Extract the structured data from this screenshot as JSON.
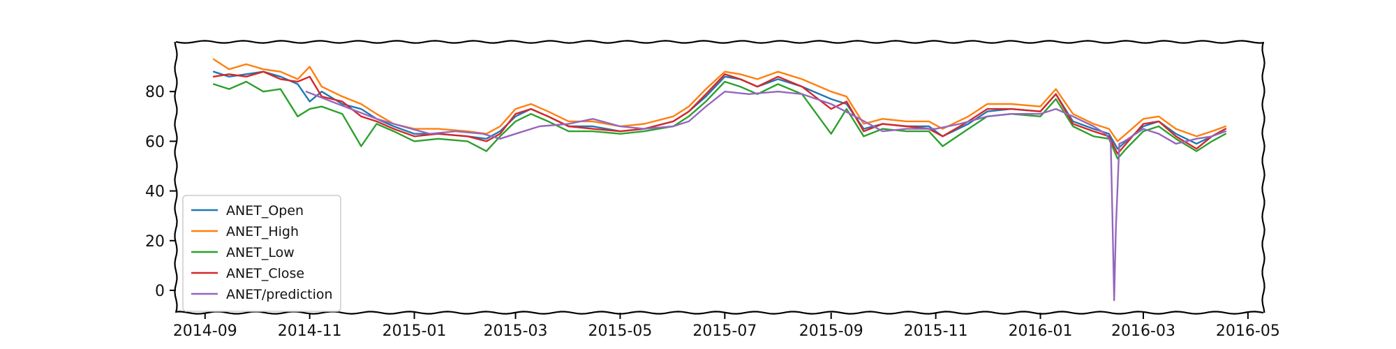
{
  "chart_data": {
    "type": "line",
    "title": "",
    "xlabel": "",
    "ylabel": "",
    "x_range": [
      "2014-08-15",
      "2016-05-10"
    ],
    "ylim": [
      -9,
      100
    ],
    "x_ticks": [
      "2014-09-01",
      "2014-11-01",
      "2015-01-01",
      "2015-03-01",
      "2015-05-01",
      "2015-07-01",
      "2015-09-01",
      "2015-11-01",
      "2016-01-01",
      "2016-03-01",
      "2016-05-01"
    ],
    "x_tick_labels": [
      "2014-09",
      "2014-11",
      "2015-01",
      "2015-03",
      "2015-05",
      "2015-07",
      "2015-09",
      "2015-11",
      "2016-01",
      "2016-03",
      "2016-05"
    ],
    "y_ticks": [
      0,
      20,
      40,
      60,
      80
    ],
    "y_tick_labels": [
      "0",
      "20",
      "40",
      "60",
      "80"
    ],
    "grid": false,
    "legend_position": "lower-left",
    "style": "xkcd",
    "series": [
      {
        "name": "ANET_Open",
        "color": "#1f77b4",
        "x": [
          "2014-09-06",
          "2014-09-15",
          "2014-09-25",
          "2014-10-05",
          "2014-10-15",
          "2014-10-25",
          "2014-11-01",
          "2014-11-08",
          "2014-11-20",
          "2014-12-01",
          "2014-12-10",
          "2014-12-20",
          "2015-01-01",
          "2015-01-15",
          "2015-02-01",
          "2015-02-12",
          "2015-02-20",
          "2015-03-01",
          "2015-03-10",
          "2015-03-20",
          "2015-04-01",
          "2015-04-15",
          "2015-05-01",
          "2015-05-15",
          "2015-06-01",
          "2015-06-10",
          "2015-06-20",
          "2015-07-01",
          "2015-07-10",
          "2015-07-20",
          "2015-08-01",
          "2015-08-15",
          "2015-09-01",
          "2015-09-10",
          "2015-09-20",
          "2015-10-01",
          "2015-10-15",
          "2015-10-28",
          "2015-11-05",
          "2015-11-20",
          "2015-12-01",
          "2015-12-15",
          "2016-01-01",
          "2016-01-10",
          "2016-01-20",
          "2016-02-01",
          "2016-02-10",
          "2016-02-15",
          "2016-02-20",
          "2016-03-01",
          "2016-03-10",
          "2016-03-20",
          "2016-04-01",
          "2016-04-10",
          "2016-04-18"
        ],
        "values": [
          88,
          86,
          87,
          88,
          86,
          83,
          76,
          80,
          75,
          73,
          69,
          66,
          63,
          63,
          62,
          61,
          64,
          70,
          73,
          70,
          66,
          66,
          64,
          65,
          68,
          72,
          78,
          86,
          85,
          82,
          85,
          82,
          77,
          75,
          65,
          67,
          66,
          66,
          62,
          67,
          72,
          73,
          72,
          79,
          68,
          65,
          63,
          57,
          60,
          66,
          68,
          63,
          59,
          62,
          65
        ]
      },
      {
        "name": "ANET_High",
        "color": "#ff7f0e",
        "x": [
          "2014-09-06",
          "2014-09-15",
          "2014-09-25",
          "2014-10-05",
          "2014-10-15",
          "2014-10-25",
          "2014-11-01",
          "2014-11-08",
          "2014-11-20",
          "2014-12-01",
          "2014-12-10",
          "2014-12-20",
          "2015-01-01",
          "2015-01-15",
          "2015-02-01",
          "2015-02-12",
          "2015-02-20",
          "2015-03-01",
          "2015-03-10",
          "2015-03-20",
          "2015-04-01",
          "2015-04-15",
          "2015-05-01",
          "2015-05-15",
          "2015-06-01",
          "2015-06-10",
          "2015-06-20",
          "2015-07-01",
          "2015-07-10",
          "2015-07-20",
          "2015-08-01",
          "2015-08-15",
          "2015-09-01",
          "2015-09-10",
          "2015-09-20",
          "2015-10-01",
          "2015-10-15",
          "2015-10-28",
          "2015-11-05",
          "2015-11-20",
          "2015-12-01",
          "2015-12-15",
          "2016-01-01",
          "2016-01-10",
          "2016-01-20",
          "2016-02-01",
          "2016-02-10",
          "2016-02-15",
          "2016-02-20",
          "2016-03-01",
          "2016-03-10",
          "2016-03-20",
          "2016-04-01",
          "2016-04-10",
          "2016-04-18"
        ],
        "values": [
          93,
          89,
          91,
          89,
          88,
          85,
          90,
          82,
          78,
          75,
          71,
          67,
          65,
          65,
          64,
          63,
          66,
          73,
          75,
          72,
          68,
          68,
          66,
          67,
          70,
          74,
          81,
          88,
          87,
          85,
          88,
          85,
          80,
          78,
          67,
          69,
          68,
          68,
          65,
          70,
          75,
          75,
          74,
          81,
          71,
          67,
          65,
          60,
          63,
          69,
          70,
          65,
          62,
          64,
          66
        ]
      },
      {
        "name": "ANET_Low",
        "color": "#2ca02c",
        "x": [
          "2014-09-06",
          "2014-09-15",
          "2014-09-25",
          "2014-10-05",
          "2014-10-15",
          "2014-10-25",
          "2014-11-01",
          "2014-11-08",
          "2014-11-20",
          "2014-12-01",
          "2014-12-10",
          "2014-12-20",
          "2015-01-01",
          "2015-01-15",
          "2015-02-01",
          "2015-02-12",
          "2015-02-20",
          "2015-03-01",
          "2015-03-10",
          "2015-03-20",
          "2015-04-01",
          "2015-04-15",
          "2015-05-01",
          "2015-05-15",
          "2015-06-01",
          "2015-06-10",
          "2015-06-20",
          "2015-07-01",
          "2015-07-10",
          "2015-07-20",
          "2015-08-01",
          "2015-08-15",
          "2015-09-01",
          "2015-09-10",
          "2015-09-20",
          "2015-10-01",
          "2015-10-15",
          "2015-10-28",
          "2015-11-05",
          "2015-11-20",
          "2015-12-01",
          "2015-12-15",
          "2016-01-01",
          "2016-01-10",
          "2016-01-20",
          "2016-02-01",
          "2016-02-10",
          "2016-02-15",
          "2016-02-20",
          "2016-03-01",
          "2016-03-10",
          "2016-03-20",
          "2016-04-01",
          "2016-04-10",
          "2016-04-18"
        ],
        "values": [
          83,
          81,
          84,
          80,
          81,
          70,
          73,
          74,
          71,
          58,
          67,
          64,
          60,
          61,
          60,
          56,
          62,
          68,
          71,
          68,
          64,
          64,
          63,
          64,
          66,
          70,
          76,
          84,
          82,
          79,
          83,
          79,
          63,
          73,
          62,
          65,
          64,
          64,
          58,
          65,
          70,
          71,
          70,
          77,
          66,
          62,
          61,
          53,
          57,
          64,
          66,
          61,
          56,
          60,
          63
        ]
      },
      {
        "name": "ANET_Close",
        "color": "#d62728",
        "x": [
          "2014-09-06",
          "2014-09-15",
          "2014-09-25",
          "2014-10-05",
          "2014-10-15",
          "2014-10-25",
          "2014-11-01",
          "2014-11-08",
          "2014-11-20",
          "2014-12-01",
          "2014-12-10",
          "2014-12-20",
          "2015-01-01",
          "2015-01-15",
          "2015-02-01",
          "2015-02-12",
          "2015-02-20",
          "2015-03-01",
          "2015-03-10",
          "2015-03-20",
          "2015-04-01",
          "2015-04-15",
          "2015-05-01",
          "2015-05-15",
          "2015-06-01",
          "2015-06-10",
          "2015-06-20",
          "2015-07-01",
          "2015-07-10",
          "2015-07-20",
          "2015-08-01",
          "2015-08-15",
          "2015-09-01",
          "2015-09-10",
          "2015-09-20",
          "2015-10-01",
          "2015-10-15",
          "2015-10-28",
          "2015-11-05",
          "2015-11-20",
          "2015-12-01",
          "2015-12-15",
          "2016-01-01",
          "2016-01-10",
          "2016-01-20",
          "2016-02-01",
          "2016-02-10",
          "2016-02-15",
          "2016-02-20",
          "2016-03-01",
          "2016-03-10",
          "2016-03-20",
          "2016-04-01",
          "2016-04-10",
          "2016-04-18"
        ],
        "values": [
          86,
          87,
          86,
          88,
          85,
          84,
          86,
          78,
          76,
          70,
          68,
          65,
          62,
          63,
          62,
          60,
          63,
          71,
          73,
          70,
          66,
          65,
          64,
          65,
          68,
          72,
          79,
          87,
          85,
          82,
          86,
          82,
          73,
          76,
          64,
          67,
          66,
          65,
          62,
          68,
          73,
          73,
          72,
          79,
          67,
          64,
          62,
          55,
          59,
          67,
          68,
          62,
          57,
          62,
          65
        ]
      },
      {
        "name": "ANET/prediction",
        "color": "#9467bd",
        "x": [
          "2014-10-30",
          "2014-11-10",
          "2014-11-25",
          "2014-12-10",
          "2014-12-25",
          "2015-01-10",
          "2015-01-25",
          "2015-02-10",
          "2015-02-20",
          "2015-03-01",
          "2015-03-15",
          "2015-04-01",
          "2015-04-15",
          "2015-05-01",
          "2015-05-15",
          "2015-06-01",
          "2015-06-10",
          "2015-06-20",
          "2015-07-01",
          "2015-07-15",
          "2015-08-01",
          "2015-08-15",
          "2015-09-01",
          "2015-09-15",
          "2015-10-01",
          "2015-10-15",
          "2015-11-01",
          "2015-11-15",
          "2015-12-01",
          "2015-12-15",
          "2016-01-01",
          "2016-01-10",
          "2016-01-20",
          "2016-02-01",
          "2016-02-08",
          "2016-02-11",
          "2016-02-12",
          "2016-02-13",
          "2016-02-14",
          "2016-02-16",
          "2016-02-19",
          "2016-03-01",
          "2016-03-10",
          "2016-03-20",
          "2016-04-01",
          "2016-04-10",
          "2016-04-18"
        ],
        "values": [
          80,
          77,
          73,
          69,
          66,
          63,
          64,
          63,
          61,
          63,
          66,
          67,
          69,
          66,
          65,
          66,
          68,
          74,
          80,
          79,
          80,
          79,
          75,
          70,
          64,
          65,
          65,
          67,
          70,
          71,
          71,
          73,
          70,
          66,
          63,
          60,
          30,
          -4,
          25,
          59,
          60,
          65,
          63,
          59,
          61,
          62,
          64
        ]
      }
    ]
  }
}
